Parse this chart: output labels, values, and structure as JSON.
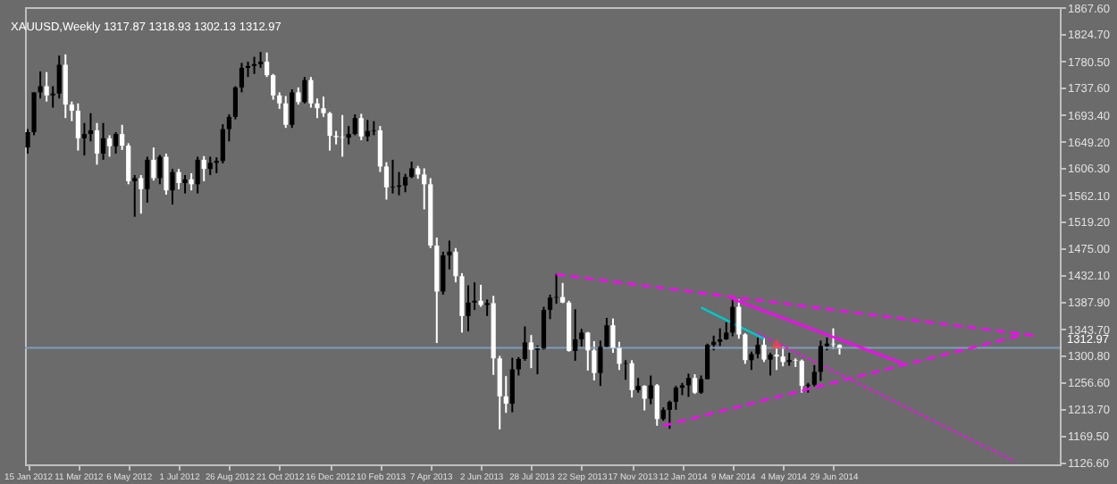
{
  "chart_data": {
    "type": "candlestick",
    "title": "XAUUSD,Weekly  1317.87 1318.93 1302.13 1312.97",
    "x": [
      "2012-01-15",
      "2012-01-22",
      "2012-01-29",
      "2012-02-05",
      "2012-02-12",
      "2012-02-19",
      "2012-02-26",
      "2012-03-04",
      "2012-03-11",
      "2012-03-18",
      "2012-03-25",
      "2012-04-01",
      "2012-04-08",
      "2012-04-15",
      "2012-04-22",
      "2012-04-29",
      "2012-05-06",
      "2012-05-13",
      "2012-05-20",
      "2012-05-27",
      "2012-06-03",
      "2012-06-10",
      "2012-06-17",
      "2012-06-24",
      "2012-07-01",
      "2012-07-08",
      "2012-07-15",
      "2012-07-22",
      "2012-07-29",
      "2012-08-05",
      "2012-08-12",
      "2012-08-19",
      "2012-08-26",
      "2012-09-02",
      "2012-09-09",
      "2012-09-16",
      "2012-09-23",
      "2012-09-30",
      "2012-10-07",
      "2012-10-14",
      "2012-10-21",
      "2012-10-28",
      "2012-11-04",
      "2012-11-11",
      "2012-11-18",
      "2012-11-25",
      "2012-12-02",
      "2012-12-09",
      "2012-12-16",
      "2012-12-23",
      "2012-12-30",
      "2013-01-06",
      "2013-01-13",
      "2013-01-20",
      "2013-01-27",
      "2013-02-03",
      "2013-02-10",
      "2013-02-17",
      "2013-02-24",
      "2013-03-03",
      "2013-03-10",
      "2013-03-17",
      "2013-03-24",
      "2013-03-31",
      "2013-04-07",
      "2013-04-14",
      "2013-04-21",
      "2013-04-28",
      "2013-05-05",
      "2013-05-12",
      "2013-05-19",
      "2013-05-26",
      "2013-06-02",
      "2013-06-09",
      "2013-06-16",
      "2013-06-23",
      "2013-06-30",
      "2013-07-07",
      "2013-07-14",
      "2013-07-21",
      "2013-07-28",
      "2013-08-04",
      "2013-08-11",
      "2013-08-18",
      "2013-08-25",
      "2013-09-01",
      "2013-09-08",
      "2013-09-15",
      "2013-09-22",
      "2013-09-29",
      "2013-10-06",
      "2013-10-13",
      "2013-10-20",
      "2013-10-27",
      "2013-11-03",
      "2013-11-10",
      "2013-11-17",
      "2013-11-24",
      "2013-12-01",
      "2013-12-08",
      "2013-12-15",
      "2013-12-22",
      "2013-12-29",
      "2014-01-05",
      "2014-01-12",
      "2014-01-19",
      "2014-01-26",
      "2014-02-02",
      "2014-02-09",
      "2014-02-16",
      "2014-02-23",
      "2014-03-02",
      "2014-03-09",
      "2014-03-16",
      "2014-03-23",
      "2014-03-30",
      "2014-04-06",
      "2014-04-13",
      "2014-04-20",
      "2014-04-27",
      "2014-05-04",
      "2014-05-11",
      "2014-05-18",
      "2014-05-25",
      "2014-06-01",
      "2014-06-08",
      "2014-06-15",
      "2014-06-22",
      "2014-06-29",
      "2014-07-06"
    ],
    "ohlc": [
      [
        1640,
        1670,
        1630,
        1665
      ],
      [
        1665,
        1730,
        1660,
        1730
      ],
      [
        1730,
        1764,
        1720,
        1740
      ],
      [
        1740,
        1763,
        1715,
        1725
      ],
      [
        1725,
        1740,
        1705,
        1728
      ],
      [
        1728,
        1790,
        1720,
        1775
      ],
      [
        1775,
        1792,
        1688,
        1710
      ],
      [
        1710,
        1715,
        1683,
        1700
      ],
      [
        1700,
        1712,
        1635,
        1655
      ],
      [
        1655,
        1680,
        1627,
        1662
      ],
      [
        1662,
        1696,
        1650,
        1668
      ],
      [
        1668,
        1680,
        1612,
        1630
      ],
      [
        1630,
        1680,
        1620,
        1655
      ],
      [
        1655,
        1660,
        1625,
        1642
      ],
      [
        1642,
        1665,
        1630,
        1662
      ],
      [
        1662,
        1677,
        1636,
        1643
      ],
      [
        1643,
        1647,
        1580,
        1585
      ],
      [
        1585,
        1595,
        1527,
        1590
      ],
      [
        1590,
        1595,
        1532,
        1572
      ],
      [
        1572,
        1625,
        1550,
        1620
      ],
      [
        1620,
        1640,
        1586,
        1590
      ],
      [
        1590,
        1628,
        1580,
        1625
      ],
      [
        1625,
        1630,
        1563,
        1570
      ],
      [
        1570,
        1605,
        1547,
        1600
      ],
      [
        1600,
        1605,
        1572,
        1582
      ],
      [
        1582,
        1595,
        1565,
        1588
      ],
      [
        1588,
        1598,
        1570,
        1580
      ],
      [
        1580,
        1625,
        1565,
        1620
      ],
      [
        1620,
        1626,
        1585,
        1605
      ],
      [
        1605,
        1625,
        1595,
        1615
      ],
      [
        1615,
        1624,
        1598,
        1618
      ],
      [
        1618,
        1678,
        1614,
        1670
      ],
      [
        1670,
        1694,
        1650,
        1690
      ],
      [
        1690,
        1740,
        1686,
        1738
      ],
      [
        1738,
        1778,
        1730,
        1770
      ],
      [
        1770,
        1780,
        1755,
        1773
      ],
      [
        1773,
        1788,
        1760,
        1776
      ],
      [
        1776,
        1796,
        1770,
        1780
      ],
      [
        1780,
        1795,
        1755,
        1758
      ],
      [
        1758,
        1760,
        1718,
        1725
      ],
      [
        1725,
        1730,
        1703,
        1712
      ],
      [
        1712,
        1724,
        1672,
        1677
      ],
      [
        1677,
        1735,
        1672,
        1730
      ],
      [
        1730,
        1738,
        1710,
        1714
      ],
      [
        1714,
        1755,
        1712,
        1750
      ],
      [
        1750,
        1755,
        1705,
        1712
      ],
      [
        1712,
        1720,
        1688,
        1704
      ],
      [
        1704,
        1723,
        1690,
        1696
      ],
      [
        1696,
        1698,
        1635,
        1659
      ],
      [
        1659,
        1667,
        1645,
        1657
      ],
      [
        1657,
        1693,
        1625,
        1656
      ],
      [
        1656,
        1675,
        1645,
        1662
      ],
      [
        1662,
        1694,
        1660,
        1688
      ],
      [
        1688,
        1695,
        1652,
        1658
      ],
      [
        1658,
        1685,
        1650,
        1667
      ],
      [
        1667,
        1683,
        1660,
        1668
      ],
      [
        1668,
        1675,
        1600,
        1609
      ],
      [
        1609,
        1616,
        1555,
        1575
      ],
      [
        1575,
        1620,
        1565,
        1576
      ],
      [
        1576,
        1600,
        1562,
        1578
      ],
      [
        1578,
        1597,
        1567,
        1592
      ],
      [
        1592,
        1617,
        1590,
        1606
      ],
      [
        1606,
        1610,
        1589,
        1596
      ],
      [
        1596,
        1606,
        1539,
        1580
      ],
      [
        1580,
        1590,
        1476,
        1480
      ],
      [
        1480,
        1493,
        1321,
        1405
      ],
      [
        1405,
        1470,
        1400,
        1464
      ],
      [
        1464,
        1488,
        1441,
        1470
      ],
      [
        1470,
        1476,
        1420,
        1430
      ],
      [
        1430,
        1435,
        1338,
        1365
      ],
      [
        1365,
        1415,
        1340,
        1387
      ],
      [
        1387,
        1420,
        1375,
        1390
      ],
      [
        1390,
        1416,
        1380,
        1383
      ],
      [
        1383,
        1392,
        1365,
        1386
      ],
      [
        1386,
        1398,
        1269,
        1296
      ],
      [
        1296,
        1300,
        1180,
        1234
      ],
      [
        1234,
        1267,
        1207,
        1222
      ],
      [
        1222,
        1297,
        1208,
        1278
      ],
      [
        1278,
        1298,
        1268,
        1295
      ],
      [
        1295,
        1348,
        1292,
        1322
      ],
      [
        1322,
        1334,
        1280,
        1310
      ],
      [
        1310,
        1317,
        1270,
        1312
      ],
      [
        1312,
        1380,
        1310,
        1375
      ],
      [
        1375,
        1400,
        1360,
        1395
      ],
      [
        1395,
        1434,
        1385,
        1396
      ],
      [
        1396,
        1419,
        1386,
        1387
      ],
      [
        1387,
        1390,
        1307,
        1308
      ],
      [
        1308,
        1376,
        1292,
        1327
      ],
      [
        1327,
        1344,
        1315,
        1338
      ],
      [
        1338,
        1339,
        1276,
        1309
      ],
      [
        1309,
        1324,
        1260,
        1272
      ],
      [
        1272,
        1325,
        1251,
        1315
      ],
      [
        1315,
        1362,
        1313,
        1350
      ],
      [
        1350,
        1361,
        1305,
        1313
      ],
      [
        1313,
        1323,
        1277,
        1287
      ],
      [
        1287,
        1293,
        1261,
        1288
      ],
      [
        1288,
        1293,
        1232,
        1244
      ],
      [
        1244,
        1264,
        1240,
        1251
      ],
      [
        1251,
        1252,
        1211,
        1230
      ],
      [
        1230,
        1268,
        1221,
        1252
      ],
      [
        1252,
        1254,
        1186,
        1197
      ],
      [
        1197,
        1216,
        1194,
        1212
      ],
      [
        1212,
        1227,
        1181,
        1225
      ],
      [
        1225,
        1251,
        1212,
        1248
      ],
      [
        1248,
        1256,
        1236,
        1252
      ],
      [
        1252,
        1271,
        1233,
        1264
      ],
      [
        1264,
        1270,
        1238,
        1240
      ],
      [
        1240,
        1268,
        1238,
        1262
      ],
      [
        1262,
        1320,
        1262,
        1318
      ],
      [
        1318,
        1333,
        1309,
        1323
      ],
      [
        1323,
        1345,
        1316,
        1327
      ],
      [
        1327,
        1355,
        1326,
        1338
      ],
      [
        1338,
        1392,
        1332,
        1380
      ],
      [
        1380,
        1392,
        1328,
        1335
      ],
      [
        1335,
        1337,
        1287,
        1293
      ],
      [
        1293,
        1307,
        1277,
        1303
      ],
      [
        1303,
        1330,
        1296,
        1318
      ],
      [
        1318,
        1332,
        1290,
        1294
      ],
      [
        1294,
        1305,
        1268,
        1302
      ],
      [
        1302,
        1315,
        1277,
        1299
      ],
      [
        1299,
        1315,
        1283,
        1290
      ],
      [
        1290,
        1305,
        1284,
        1293
      ],
      [
        1293,
        1296,
        1282,
        1292
      ],
      [
        1292,
        1294,
        1240,
        1251
      ],
      [
        1251,
        1256,
        1240,
        1253
      ],
      [
        1253,
        1285,
        1250,
        1274
      ],
      [
        1274,
        1325,
        1259,
        1316
      ],
      [
        1316,
        1330,
        1309,
        1320
      ],
      [
        1320,
        1345,
        1311,
        1319
      ],
      [
        1317.87,
        1318.93,
        1302.13,
        1312.97
      ]
    ],
    "colors": [
      "#000000",
      "#000000",
      "#000000",
      "#ffffff",
      "#000000",
      "#000000",
      "#ffffff",
      "#ffffff",
      "#ffffff",
      "#000000",
      "#000000",
      "#ffffff",
      "#000000",
      "#ffffff",
      "#000000",
      "#ffffff",
      "#ffffff",
      "#000000",
      "#ffffff",
      "#000000",
      "#ffffff",
      "#000000",
      "#ffffff",
      "#000000",
      "#ffffff",
      "#000000",
      "#ffffff",
      "#000000",
      "#ffffff",
      "#000000",
      "#000000",
      "#000000",
      "#000000",
      "#000000",
      "#000000",
      "#000000",
      "#000000",
      "#000000",
      "#ffffff",
      "#ffffff",
      "#ffffff",
      "#ffffff",
      "#000000",
      "#ffffff",
      "#000000",
      "#ffffff",
      "#ffffff",
      "#ffffff",
      "#ffffff",
      "#ffffff",
      "#ffffff",
      "#000000",
      "#000000",
      "#ffffff",
      "#000000",
      "#000000",
      "#ffffff",
      "#ffffff",
      "#000000",
      "#000000",
      "#000000",
      "#000000",
      "#ffffff",
      "#ffffff",
      "#ffffff",
      "#ffffff",
      "#000000",
      "#000000",
      "#ffffff",
      "#ffffff",
      "#000000",
      "#000000",
      "#ffffff",
      "#000000",
      "#ffffff",
      "#ffffff",
      "#ffffff",
      "#000000",
      "#000000",
      "#000000",
      "#ffffff",
      "#000000",
      "#000000",
      "#000000",
      "#000000",
      "#ffffff",
      "#ffffff",
      "#000000",
      "#000000",
      "#ffffff",
      "#ffffff",
      "#000000",
      "#000000",
      "#ffffff",
      "#ffffff",
      "#000000",
      "#ffffff",
      "#000000",
      "#ffffff",
      "#000000",
      "#ffffff",
      "#000000",
      "#000000",
      "#000000",
      "#000000",
      "#000000",
      "#ffffff",
      "#000000",
      "#000000",
      "#000000",
      "#000000",
      "#000000",
      "#000000",
      "#ffffff",
      "#ffffff",
      "#000000",
      "#000000",
      "#ffffff",
      "#000000",
      "#ffffff",
      "#ffffff",
      "#000000",
      "#ffffff",
      "#ffffff",
      "#000000",
      "#000000",
      "#000000",
      "#000000",
      "#ffffff",
      "#ffffff"
    ],
    "series": [
      {
        "type": "line",
        "color": "#ff00ff",
        "line_style": "dashed",
        "x": [
          "2013-08-25",
          "2015-02-08"
        ],
        "values": [
          1433,
          1333
        ]
      },
      {
        "type": "line",
        "color": "#ff00ff",
        "line_style": "solid",
        "x": [
          "2014-03-09",
          "2014-09-14"
        ],
        "values": [
          1393,
          1288
        ]
      },
      {
        "type": "line",
        "color": "#ff00ff",
        "line_style": "dashed",
        "x": [
          "2013-12-22",
          "2015-01-25"
        ],
        "values": [
          1186,
          1334
        ]
      },
      {
        "type": "line",
        "color": "#ff00ff",
        "line_style": "dotted",
        "x": [
          "2014-04-06",
          "2015-01-18"
        ],
        "values": [
          1337,
          1127
        ]
      },
      {
        "type": "line",
        "color": "#00c8c8",
        "line_style": "solid",
        "x": [
          "2014-02-02",
          "2014-04-13"
        ],
        "values": [
          1379,
          1328
        ]
      },
      {
        "type": "scatter",
        "color": "#ff4040",
        "marker": "triangle",
        "x": [
          "2014-04-27"
        ],
        "values": [
          1320
        ]
      }
    ],
    "ref_lines": [
      {
        "axis": "y",
        "value": 1312.97,
        "label": "1312.97",
        "color": "#7f9db9"
      }
    ],
    "xlim": [
      "2012-01-12",
      "2015-03-08"
    ],
    "xticks": [
      {
        "value": "2012-01-15",
        "label": "15 Jan 2012"
      },
      {
        "value": "2012-03-11",
        "label": "11 Mar 2012"
      },
      {
        "value": "2012-05-06",
        "label": "6 May 2012"
      },
      {
        "value": "2012-07-01",
        "label": "1 Jul 2012"
      },
      {
        "value": "2012-08-26",
        "label": "26 Aug 2012"
      },
      {
        "value": "2012-10-21",
        "label": "21 Oct 2012"
      },
      {
        "value": "2012-12-16",
        "label": "16 Dec 2012"
      },
      {
        "value": "2013-02-10",
        "label": "10 Feb 2013"
      },
      {
        "value": "2013-04-07",
        "label": "7 Apr 2013"
      },
      {
        "value": "2013-06-02",
        "label": "2 Jun 2013"
      },
      {
        "value": "2013-07-28",
        "label": "28 Jul 2013"
      },
      {
        "value": "2013-09-22",
        "label": "22 Sep 2013"
      },
      {
        "value": "2013-11-17",
        "label": "17 Nov 2013"
      },
      {
        "value": "2014-01-12",
        "label": "12 Jan 2014"
      },
      {
        "value": "2014-03-09",
        "label": "9 Mar 2014"
      },
      {
        "value": "2014-05-04",
        "label": "4 May 2014"
      },
      {
        "value": "2014-06-29",
        "label": "29 Jun 2014"
      }
    ],
    "ylim": [
      1123,
      1869
    ],
    "yticks": [
      {
        "value": 1867.6,
        "label": "1867.60"
      },
      {
        "value": 1824.7,
        "label": "1824.70"
      },
      {
        "value": 1780.5,
        "label": "1780.50"
      },
      {
        "value": 1737.6,
        "label": "1737.60"
      },
      {
        "value": 1693.4,
        "label": "1693.40"
      },
      {
        "value": 1649.2,
        "label": "1649.20"
      },
      {
        "value": 1606.3,
        "label": "1606.30"
      },
      {
        "value": 1562.1,
        "label": "1562.10"
      },
      {
        "value": 1519.2,
        "label": "1519.20"
      },
      {
        "value": 1475,
        "label": "1475.00"
      },
      {
        "value": 1432.1,
        "label": "1432.10"
      },
      {
        "value": 1387.9,
        "label": "1387.90"
      },
      {
        "value": 1343.7,
        "label": "1343.70"
      },
      {
        "value": 1300.8,
        "label": "1300.80"
      },
      {
        "value": 1256.6,
        "label": "1256.60"
      },
      {
        "value": 1213.7,
        "label": "1213.70"
      },
      {
        "value": 1169.5,
        "label": "1169.50"
      },
      {
        "value": 1126.6,
        "label": "1126.60"
      }
    ]
  }
}
